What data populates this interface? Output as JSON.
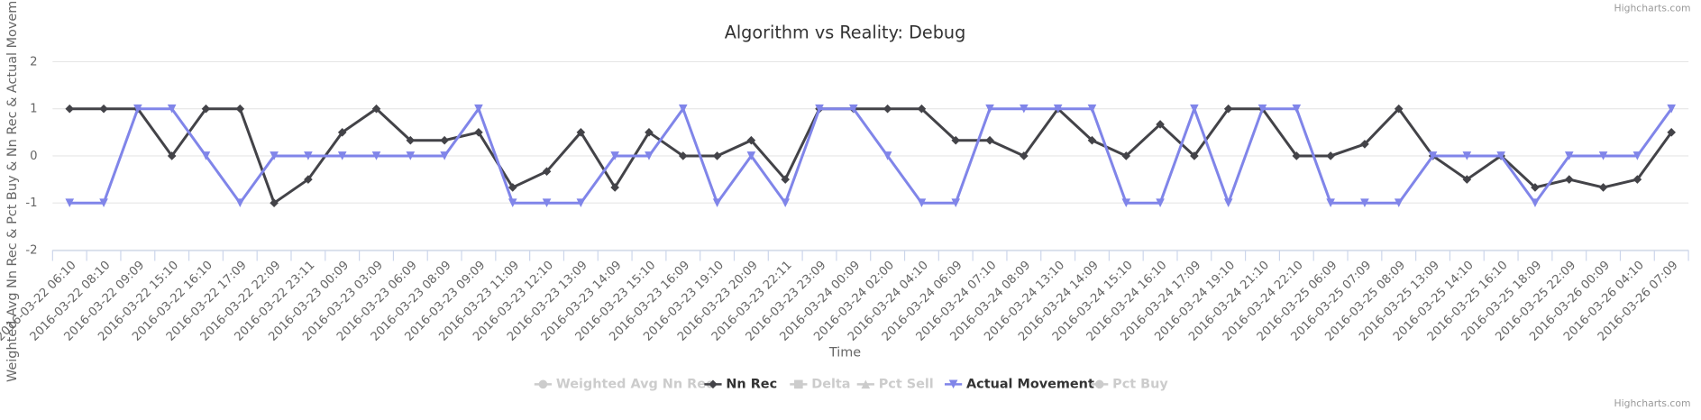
{
  "chart_data": {
    "type": "line",
    "title": "Algorithm vs Reality: Debug",
    "credits": "Highcharts.com",
    "x_label": "Time",
    "y_label": "Weighted Avg Nn Rec & Pct Buy & Nn Rec & Actual Movement &",
    "categories": [
      "2016-03-22 06:10",
      "2016-03-22 08:10",
      "2016-03-22 09:09",
      "2016-03-22 15:10",
      "2016-03-22 16:10",
      "2016-03-22 17:09",
      "2016-03-22 22:09",
      "2016-03-22 23:11",
      "2016-03-23 00:09",
      "2016-03-23 03:09",
      "2016-03-23 06:09",
      "2016-03-23 08:09",
      "2016-03-23 09:09",
      "2016-03-23 11:09",
      "2016-03-23 12:10",
      "2016-03-23 13:09",
      "2016-03-23 14:09",
      "2016-03-23 15:10",
      "2016-03-23 16:09",
      "2016-03-23 19:10",
      "2016-03-23 20:09",
      "2016-03-23 22:11",
      "2016-03-23 23:09",
      "2016-03-24 00:09",
      "2016-03-24 02:00",
      "2016-03-24 04:10",
      "2016-03-24 06:09",
      "2016-03-24 07:10",
      "2016-03-24 08:09",
      "2016-03-24 13:10",
      "2016-03-24 14:09",
      "2016-03-24 15:10",
      "2016-03-24 16:10",
      "2016-03-24 17:09",
      "2016-03-24 19:10",
      "2016-03-24 21:10",
      "2016-03-24 22:10",
      "2016-03-25 06:09",
      "2016-03-25 07:09",
      "2016-03-25 08:09",
      "2016-03-25 13:09",
      "2016-03-25 14:10",
      "2016-03-25 16:10",
      "2016-03-25 18:09",
      "2016-03-25 22:09",
      "2016-03-26 00:09",
      "2016-03-26 04:10",
      "2016-03-26 07:09"
    ],
    "series": [
      {
        "name": "Weighted Avg Nn Rec",
        "color": "#cccccc",
        "marker": "circle",
        "visible": false
      },
      {
        "name": "Nn Rec",
        "color": "#434348",
        "marker": "diamond",
        "visible": true,
        "values": [
          1,
          1,
          1,
          0,
          1,
          1,
          -1,
          -0.5,
          0.5,
          1,
          0.33,
          0.33,
          0.5,
          -0.67,
          -0.33,
          0.5,
          -0.67,
          0.5,
          0,
          0,
          0.33,
          -0.5,
          1,
          1,
          1,
          1,
          0.33,
          0.33,
          0,
          1,
          0.33,
          0,
          0.67,
          0,
          1,
          1,
          0,
          0,
          0.25,
          1,
          0,
          -0.5,
          0,
          -0.67,
          -0.5,
          -0.67,
          -0.5,
          0.5
        ]
      },
      {
        "name": "Delta",
        "color": "#cccccc",
        "marker": "square",
        "visible": false
      },
      {
        "name": "Pct Sell",
        "color": "#cccccc",
        "marker": "triangle",
        "visible": false
      },
      {
        "name": "Actual Movement",
        "color": "#8085e9",
        "marker": "triangle-down",
        "visible": true,
        "values": [
          -1,
          -1,
          1,
          1,
          0,
          -1,
          0,
          0,
          0,
          0,
          0,
          0,
          1,
          -1,
          -1,
          -1,
          0,
          0,
          1,
          -1,
          0,
          -1,
          1,
          1,
          0,
          -1,
          -1,
          1,
          1,
          1,
          1,
          -1,
          -1,
          1,
          -1,
          1,
          1,
          -1,
          -1,
          -1,
          0,
          0,
          0,
          -1,
          0,
          0,
          0,
          1
        ]
      },
      {
        "name": "Pct Buy",
        "color": "#cccccc",
        "marker": "circle",
        "visible": false
      }
    ],
    "ylim": [
      -2,
      2
    ],
    "yticks": [
      -2,
      -1,
      0,
      1,
      2
    ],
    "grid": true,
    "legend": "bottom"
  }
}
